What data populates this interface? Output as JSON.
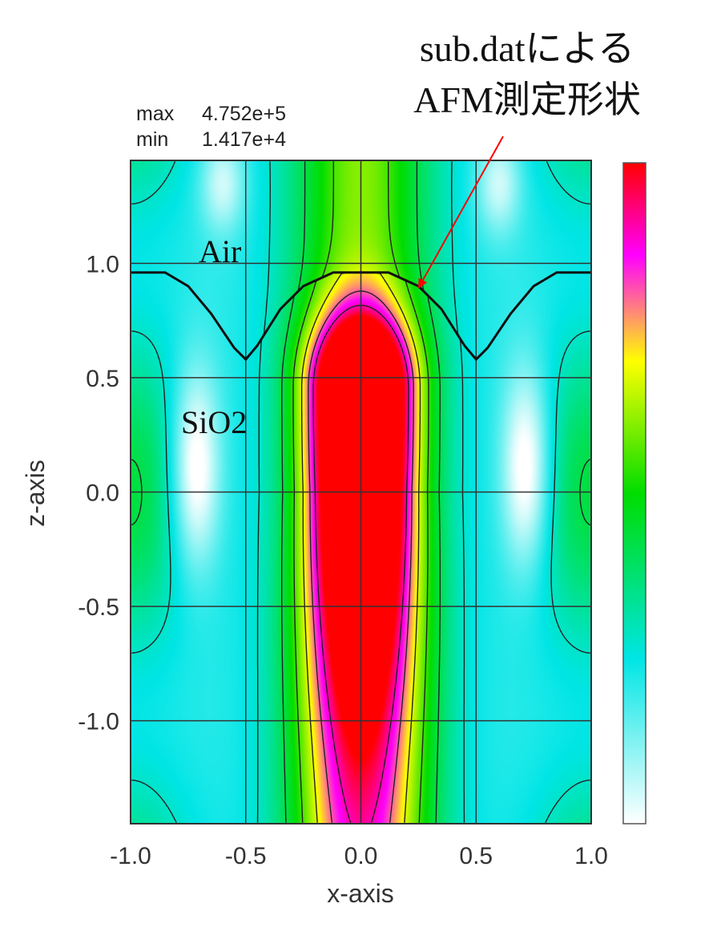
{
  "chart_data": {
    "type": "heatmap",
    "title": "",
    "xlabel": "x-axis",
    "ylabel": "z-axis",
    "xlim": [
      -1.0,
      1.0
    ],
    "ylim": [
      -1.45,
      1.45
    ],
    "x_ticks": [
      "-1.0",
      "-0.5",
      "0.0",
      "0.5",
      "1.0"
    ],
    "y_ticks": [
      "1.0",
      "0.5",
      "0.0",
      "-0.5",
      "-1.0"
    ],
    "x_tick_values": [
      -1.0,
      -0.5,
      0.0,
      0.5,
      1.0
    ],
    "y_tick_values": [
      1.0,
      0.5,
      0.0,
      -0.5,
      -1.0
    ],
    "grid": true,
    "max_label": "max",
    "max_value": "4.752e+5",
    "min_label": "min",
    "min_value": "1.417e+4",
    "max_numeric": 475200,
    "min_numeric": 14170,
    "colormap": [
      "#ffffff",
      "#00e5e5",
      "#00dd00",
      "#ffff00",
      "#ff00ff",
      "#ff0000"
    ],
    "colorbar": "right",
    "peak": {
      "x": 0.0,
      "z": 0.45
    },
    "surface_profile": [
      [
        -1.0,
        0.96
      ],
      [
        -0.85,
        0.96
      ],
      [
        -0.75,
        0.9
      ],
      [
        -0.65,
        0.78
      ],
      [
        -0.55,
        0.63
      ],
      [
        -0.5,
        0.58
      ],
      [
        -0.45,
        0.64
      ],
      [
        -0.35,
        0.8
      ],
      [
        -0.25,
        0.9
      ],
      [
        -0.12,
        0.96
      ],
      [
        0.12,
        0.96
      ],
      [
        0.25,
        0.9
      ],
      [
        0.35,
        0.8
      ],
      [
        0.45,
        0.64
      ],
      [
        0.5,
        0.58
      ],
      [
        0.55,
        0.63
      ],
      [
        0.65,
        0.78
      ],
      [
        0.75,
        0.9
      ],
      [
        0.85,
        0.96
      ],
      [
        1.0,
        0.96
      ]
    ],
    "annotations": {
      "air": "Air",
      "sio2": "SiO2",
      "callout_line1": "sub.datによる",
      "callout_line2": "AFM測定形状"
    }
  }
}
